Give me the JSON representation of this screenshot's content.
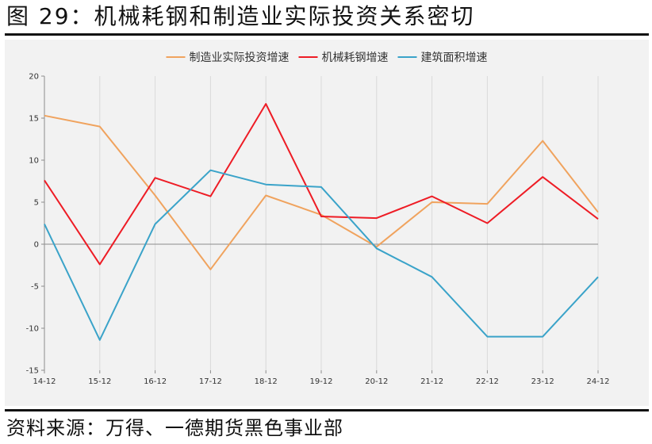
{
  "figure": {
    "title": "图 29：机械耗钢和制造业实际投资关系密切",
    "source": "资料来源：万得、一德期货黑色事业部"
  },
  "colors": {
    "panel_bg": "#f2f2f2",
    "axis": "#8c8c8c",
    "gridline": "#d9d9d9",
    "text": "#333333"
  },
  "chart_data": {
    "type": "line",
    "x": [
      "14-12",
      "15-12",
      "16-12",
      "17-12",
      "18-12",
      "19-12",
      "20-12",
      "21-12",
      "22-12",
      "23-12",
      "24-12"
    ],
    "ylim": [
      -15,
      20
    ],
    "yticks": [
      -15,
      -10,
      -5,
      0,
      5,
      10,
      15,
      20
    ],
    "grid": "vertical",
    "legend": "top",
    "series": [
      {
        "name": "制造业实际投资增速",
        "color": "#f0a35e",
        "values": [
          15.3,
          14.0,
          5.8,
          -3.0,
          5.8,
          3.5,
          -0.3,
          5.0,
          4.8,
          12.3,
          3.8
        ]
      },
      {
        "name": "机械耗钢增速",
        "color": "#ee1c25",
        "values": [
          7.6,
          -2.4,
          7.9,
          5.7,
          16.7,
          3.3,
          3.1,
          5.7,
          2.5,
          8.0,
          3.0
        ]
      },
      {
        "name": "建筑面积增速",
        "color": "#3aa3c9",
        "values": [
          2.4,
          -11.4,
          2.4,
          8.8,
          7.1,
          6.8,
          -0.5,
          -3.9,
          -11.0,
          -11.0,
          -3.9
        ]
      }
    ]
  }
}
